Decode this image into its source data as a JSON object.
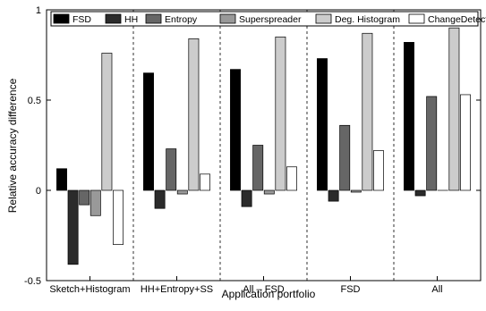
{
  "chart_data": {
    "type": "bar",
    "title": "",
    "xlabel": "Application portfolio",
    "ylabel": "Relative accuracy difference",
    "ylim": [
      -0.5,
      1
    ],
    "yticks": [
      -0.5,
      0,
      0.5,
      1
    ],
    "ytick_labels": [
      "-0.5",
      "0",
      "0.5",
      "1"
    ],
    "grid": false,
    "legend_position": "top",
    "categories": [
      "Sketch+Histogram",
      "HH+Entropy+SS",
      "All – FSD",
      "FSD",
      "All"
    ],
    "series": [
      {
        "name": "FSD",
        "color": "#000000",
        "values": [
          0.12,
          0.65,
          0.67,
          0.73,
          0.82
        ]
      },
      {
        "name": "HH",
        "color": "#2b2b2b",
        "values": [
          -0.41,
          -0.1,
          -0.09,
          -0.06,
          -0.03
        ]
      },
      {
        "name": "Entropy",
        "color": "#666666",
        "values": [
          -0.08,
          0.23,
          0.25,
          0.36,
          0.52
        ]
      },
      {
        "name": "Superspreader",
        "color": "#999999",
        "values": [
          -0.14,
          -0.02,
          -0.02,
          -0.01,
          0.0
        ]
      },
      {
        "name": "Deg. Histogram",
        "color": "#cccccc",
        "values": [
          0.76,
          0.84,
          0.85,
          0.87,
          0.9
        ]
      },
      {
        "name": "ChangeDetection",
        "color": "#ffffff",
        "values": [
          -0.3,
          0.09,
          0.13,
          0.22,
          0.53
        ]
      }
    ]
  }
}
